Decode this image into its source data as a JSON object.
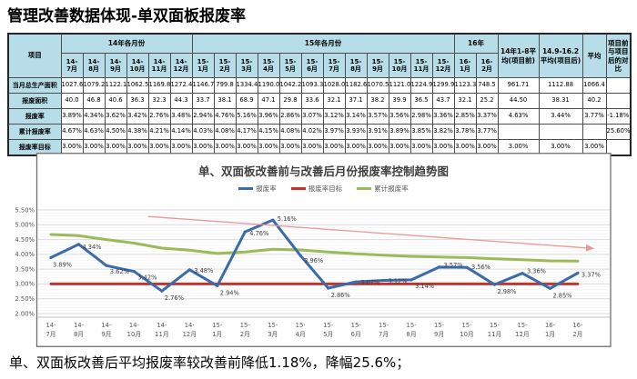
{
  "page_title": "管理改善数据体现-单双面板报废率",
  "footer_note": "单、双面板改善后平均报废率较改善前降低1.18%，降幅25.6%；",
  "table": {
    "corner_label": "项目",
    "group_headers": [
      {
        "label": "14年各月份",
        "span": 6
      },
      {
        "label": "15年各月份",
        "span": 12
      },
      {
        "label": "16年",
        "span": 2
      }
    ],
    "month_headers": [
      "14-7月",
      "14-8月",
      "14-9月",
      "14-10月",
      "14-11月",
      "14-12月",
      "15-1月",
      "15-2月",
      "15-3月",
      "15-4月",
      "15-5月",
      "15-6月",
      "15-7月",
      "15-8月",
      "15-9月",
      "15-10月",
      "15-11月",
      "15-12月",
      "16-1月",
      "16-2月"
    ],
    "summary_headers": [
      "14年1-8平均(项目前)",
      "14.9-16.2平均(项目后)",
      "平均",
      "项目前与项目后的对比"
    ],
    "rows": [
      {
        "label": "当月总生产面积",
        "values": [
          "1027.6",
          "1079.2",
          "1122.1",
          "1062.5",
          "1169.8",
          "1272.4",
          "1146.7",
          "799.8",
          "1334.4",
          "1190.0",
          "1042.2",
          "1093.3",
          "1028.0",
          "1182.6",
          "1070.5",
          "1121.0",
          "1224.9",
          "1299.9",
          "1123.3",
          "748.5",
          "961.71",
          "1112.88",
          "1066.4",
          ""
        ]
      },
      {
        "label": "报废面积",
        "values": [
          "40.0",
          "46.8",
          "40.6",
          "36.3",
          "32.3",
          "44.3",
          "33.7",
          "38.1",
          "68.9",
          "47.1",
          "29.8",
          "33.6",
          "32.1",
          "37.1",
          "38.2",
          "39.9",
          "36.5",
          "43.7",
          "32.1",
          "25.2",
          "44.50",
          "38.31",
          "40.2",
          ""
        ]
      },
      {
        "label": "报废率",
        "values": [
          "3.89%",
          "4.34%",
          "3.62%",
          "3.42%",
          "2.76%",
          "3.48%",
          "2.94%",
          "4.76%",
          "5.16%",
          "3.96%",
          "2.86%",
          "3.07%",
          "3.12%",
          "3.14%",
          "3.57%",
          "3.56%",
          "2.98%",
          "3.36%",
          "2.85%",
          "3.37%",
          "4.63%",
          "3.44%",
          "3.77%",
          "-1.18%"
        ]
      },
      {
        "label": "累计报废率",
        "values": [
          "4.67%",
          "4.63%",
          "4.50%",
          "4.38%",
          "4.21%",
          "4.14%",
          "4.03%",
          "4.08%",
          "4.17%",
          "4.15%",
          "4.08%",
          "4.02%",
          "3.97%",
          "3.93%",
          "3.91%",
          "3.89%",
          "3.85%",
          "3.82%",
          "3.78%",
          "3.77%",
          "",
          "",
          "",
          "25.60%"
        ]
      },
      {
        "label": "报废率目标",
        "values": [
          "3.00%",
          "3.00%",
          "3.00%",
          "3.00%",
          "3.00%",
          "3.00%",
          "3.00%",
          "3.00%",
          "3.00%",
          "3.00%",
          "3.00%",
          "3.00%",
          "3.00%",
          "3.00%",
          "3.00%",
          "3.00%",
          "3.00%",
          "3.00%",
          "3.00%",
          "3.00%",
          "3.00%",
          "3.00%",
          "3.00%",
          ""
        ]
      }
    ]
  },
  "chart_data": {
    "type": "line",
    "title": "单、双面板改善前与改善后月份报废率控制趋势图",
    "categories": [
      "14-7月",
      "14-8月",
      "14-9月",
      "14-10月",
      "14-11月",
      "14-12月",
      "15-1月",
      "15-2月",
      "15-3月",
      "15-4月",
      "15-5月",
      "15-6月",
      "15-7月",
      "15-8月",
      "15-9月",
      "15-10月",
      "15-11月",
      "15-12月",
      "16-1月",
      "16-2月"
    ],
    "series": [
      {
        "name": "报废率",
        "color": "#3a6bab",
        "values": [
          3.89,
          4.34,
          3.62,
          3.42,
          2.76,
          3.48,
          2.94,
          4.76,
          5.16,
          3.96,
          2.86,
          3.07,
          3.12,
          3.14,
          3.57,
          3.56,
          2.98,
          3.36,
          2.85,
          3.37
        ],
        "point_labels": [
          "3.89%",
          "4.34%",
          "3.62%",
          "3.42%",
          "2.76%",
          "3.48%",
          "2.94%",
          "4.76%",
          "5.16%",
          "3.96%",
          "2.86%",
          "3.07%",
          "3.12%",
          "3.14%",
          "3.57%",
          "3.56%",
          "2.98%",
          "3.36%",
          "2.85%",
          "3.37%"
        ]
      },
      {
        "name": "报废率目标",
        "color": "#c4332d",
        "values": [
          3,
          3,
          3,
          3,
          3,
          3,
          3,
          3,
          3,
          3,
          3,
          3,
          3,
          3,
          3,
          3,
          3,
          3,
          3,
          3
        ]
      },
      {
        "name": "累计报废率",
        "color": "#9bbb59",
        "values": [
          4.67,
          4.63,
          4.5,
          4.38,
          4.21,
          4.14,
          4.03,
          4.08,
          4.17,
          4.15,
          4.08,
          4.02,
          3.97,
          3.93,
          3.91,
          3.89,
          3.85,
          3.82,
          3.78,
          3.77
        ]
      }
    ],
    "ylim": [
      2.0,
      5.5
    ],
    "ytick_step": 0.5,
    "grid": true,
    "legend_position": "top",
    "annotation_arrow": {
      "from_index": 3.5,
      "from_value": 5.28,
      "to_index": 19.55,
      "to_value": 4.2,
      "color": "#e89a9a"
    }
  }
}
